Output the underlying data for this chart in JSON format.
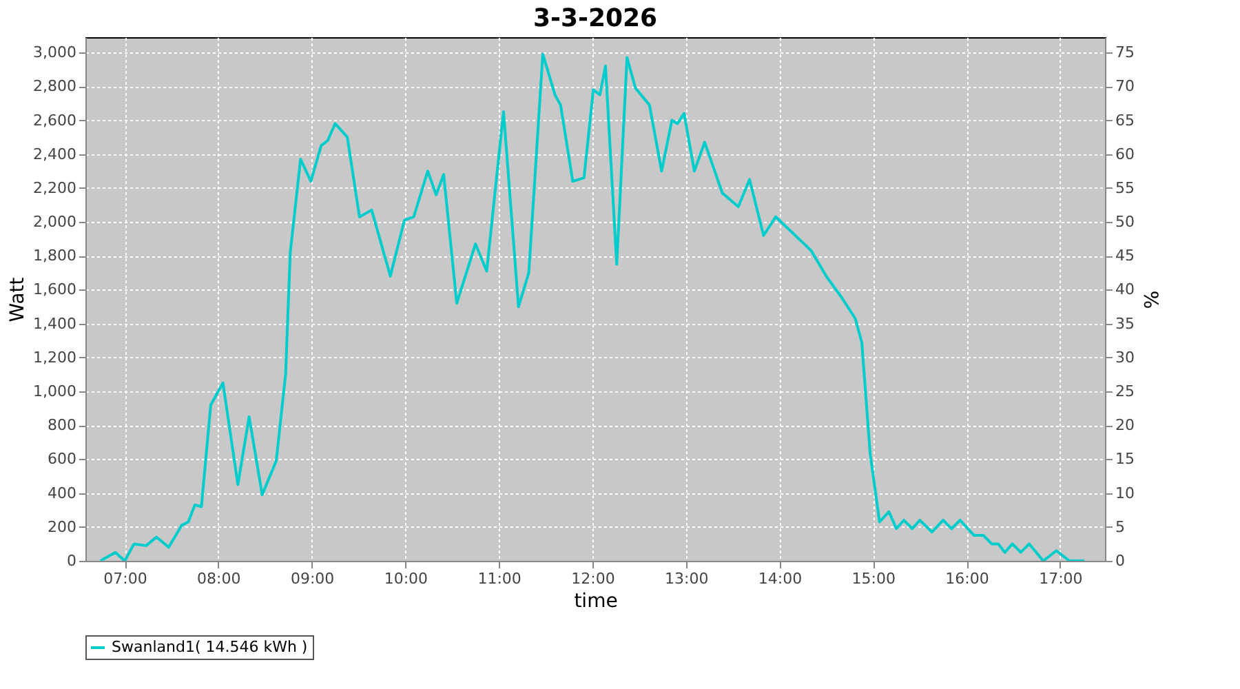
{
  "chart_data": {
    "type": "line",
    "title": "3-3-2026",
    "xlabel": "time",
    "ylabel": "Watt",
    "y2label": "%",
    "xlim": [
      6.58,
      17.48
    ],
    "xticks": [
      {
        "value": 7,
        "label": "07:00"
      },
      {
        "value": 8,
        "label": "08:00"
      },
      {
        "value": 9,
        "label": "09:00"
      },
      {
        "value": 10,
        "label": "10:00"
      },
      {
        "value": 11,
        "label": "11:00"
      },
      {
        "value": 12,
        "label": "12:00"
      },
      {
        "value": 13,
        "label": "13:00"
      },
      {
        "value": 14,
        "label": "14:00"
      },
      {
        "value": 15,
        "label": "15:00"
      },
      {
        "value": 16,
        "label": "16:00"
      },
      {
        "value": 17,
        "label": "17:00"
      }
    ],
    "ylim": [
      0,
      3090
    ],
    "yticks": [
      0,
      200,
      400,
      600,
      800,
      {
        "value": 1000,
        "label": "1,000"
      },
      {
        "value": 1200,
        "label": "1,200"
      },
      {
        "value": 1400,
        "label": "1,400"
      },
      {
        "value": 1600,
        "label": "1,600"
      },
      {
        "value": 1800,
        "label": "1,800"
      },
      {
        "value": 2000,
        "label": "2,000"
      },
      {
        "value": 2200,
        "label": "2,200"
      },
      {
        "value": 2400,
        "label": "2,400"
      },
      {
        "value": 2600,
        "label": "2,600"
      },
      {
        "value": 2800,
        "label": "2,800"
      },
      {
        "value": 3000,
        "label": "3,000"
      }
    ],
    "y2lim": [
      0,
      77.25
    ],
    "y2ticks": [
      0,
      5,
      10,
      15,
      20,
      25,
      30,
      35,
      40,
      45,
      50,
      55,
      60,
      65,
      70,
      75
    ],
    "grid": true,
    "legend": "bottom",
    "marker": "none",
    "line_style": "solid",
    "x": [
      6.74,
      6.9,
      7.0,
      7.1,
      7.23,
      7.34,
      7.47,
      7.61,
      7.68,
      7.75,
      7.82,
      7.92,
      8.05,
      8.21,
      8.33,
      8.47,
      8.62,
      8.72,
      8.77,
      8.88,
      8.99,
      9.1,
      9.17,
      9.25,
      9.38,
      9.51,
      9.64,
      9.84,
      9.99,
      10.09,
      10.24,
      10.33,
      10.41,
      10.55,
      10.75,
      10.87,
      11.05,
      11.21,
      11.32,
      11.47,
      11.6,
      11.66,
      11.79,
      11.91,
      12.01,
      12.08,
      12.14,
      12.26,
      12.37,
      12.46,
      12.61,
      12.74,
      12.85,
      12.91,
      12.98,
      13.09,
      13.2,
      13.39,
      13.56,
      13.68,
      13.83,
      13.96,
      14.34,
      14.5,
      14.67,
      14.81,
      14.88,
      14.97,
      15.07,
      15.17,
      15.25,
      15.33,
      15.42,
      15.5,
      15.63,
      15.75,
      15.84,
      15.93,
      16.08,
      16.18,
      16.27,
      16.34,
      16.41,
      16.49,
      16.58,
      16.67,
      16.82,
      16.96,
      17.1,
      17.26
    ],
    "series": [
      {
        "name": "Swanland1( 14.546 kWh )",
        "color": "#00cccc",
        "values": [
          0,
          50,
          0,
          100,
          90,
          140,
          80,
          210,
          230,
          330,
          320,
          920,
          1050,
          450,
          850,
          390,
          590,
          1100,
          1820,
          2370,
          2240,
          2450,
          2480,
          2580,
          2500,
          2030,
          2070,
          1680,
          2010,
          2030,
          2300,
          2160,
          2280,
          1520,
          1870,
          1710,
          2650,
          1500,
          1700,
          2990,
          2750,
          2690,
          2240,
          2260,
          2780,
          2750,
          2920,
          1750,
          2970,
          2790,
          2690,
          2300,
          2600,
          2580,
          2640,
          2300,
          2470,
          2170,
          2090,
          2250,
          1920,
          2030,
          1830,
          1680,
          1550,
          1430,
          1290,
          630,
          230,
          290,
          190,
          240,
          190,
          240,
          170,
          240,
          190,
          240,
          150,
          150,
          100,
          100,
          50,
          100,
          50,
          100,
          0,
          60,
          0,
          0
        ]
      }
    ]
  }
}
